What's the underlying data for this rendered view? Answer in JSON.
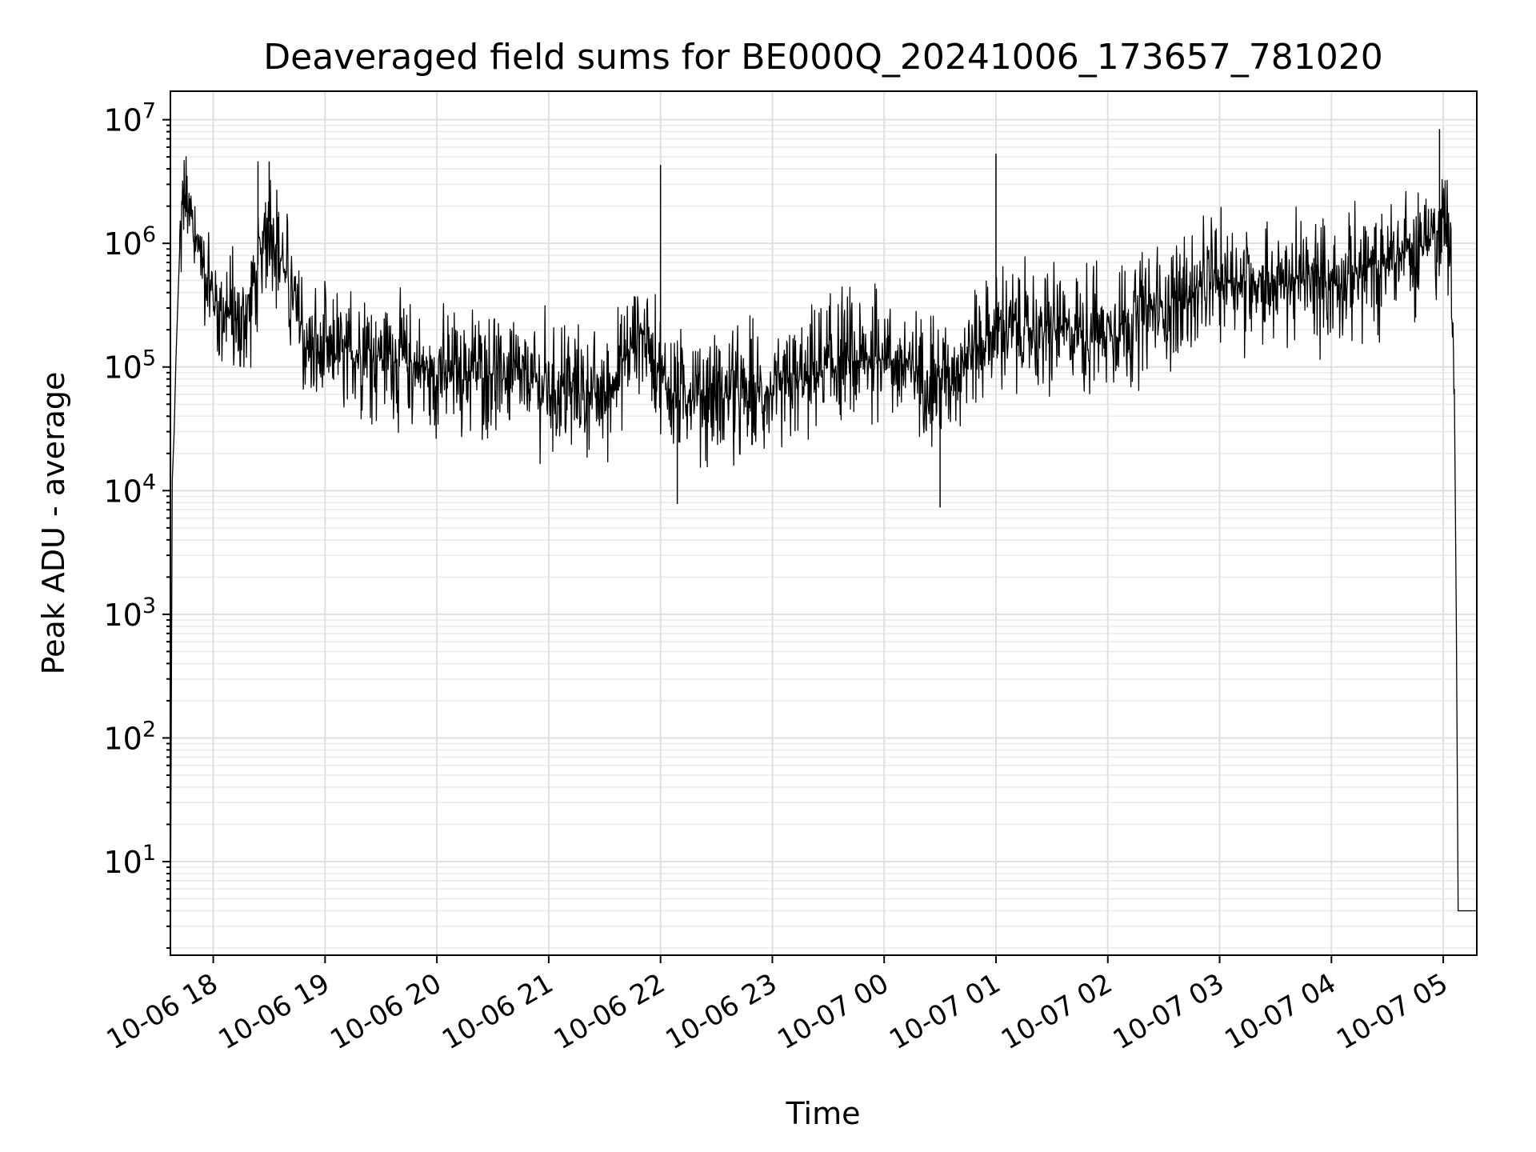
{
  "chart_data": {
    "type": "line",
    "title": "Deaveraged field sums for BE000Q_20241006_173657_781020",
    "xlabel": "Time",
    "ylabel": "Peak ADU - average",
    "yscale": "log",
    "ylim": [
      1.75,
      17000000
    ],
    "xlim": [
      "2024-10-06 17:37",
      "2024-10-07 05:18"
    ],
    "grid": true,
    "line_color": "#000000",
    "x_tick_labels": [
      "10-06 18",
      "10-06 19",
      "10-06 20",
      "10-06 21",
      "10-06 22",
      "10-06 23",
      "10-07 00",
      "10-07 01",
      "10-07 02",
      "10-07 03",
      "10-07 04",
      "10-07 05"
    ],
    "x_tick_times": [
      "2024-10-06 18:00",
      "2024-10-06 19:00",
      "2024-10-06 20:00",
      "2024-10-06 21:00",
      "2024-10-06 22:00",
      "2024-10-06 23:00",
      "2024-10-07 00:00",
      "2024-10-07 01:00",
      "2024-10-07 02:00",
      "2024-10-07 03:00",
      "2024-10-07 04:00",
      "2024-10-07 05:00"
    ],
    "y_ticks": [
      {
        "value": 10,
        "base": "10",
        "exp": "1"
      },
      {
        "value": 100,
        "base": "10",
        "exp": "2"
      },
      {
        "value": 1000,
        "base": "10",
        "exp": "3"
      },
      {
        "value": 10000,
        "base": "10",
        "exp": "4"
      },
      {
        "value": 100000,
        "base": "10",
        "exp": "5"
      },
      {
        "value": 1000000,
        "base": "10",
        "exp": "6"
      },
      {
        "value": 10000000,
        "base": "10",
        "exp": "7"
      }
    ],
    "series": [
      {
        "points": [
          [
            "2024-10-06 17:37",
            2
          ],
          [
            "2024-10-06 17:38",
            12000
          ],
          [
            "2024-10-06 17:39",
            30000
          ],
          [
            "2024-10-06 17:40",
            120000
          ],
          [
            "2024-10-06 17:42",
            900000
          ],
          [
            "2024-10-06 17:44",
            2200000
          ],
          [
            "2024-10-06 17:48",
            1500000
          ],
          [
            "2024-10-06 17:55",
            700000
          ],
          [
            "2024-10-06 18:00",
            350000
          ],
          [
            "2024-10-06 18:15",
            200000
          ],
          [
            "2024-10-06 18:30",
            1500000
          ],
          [
            "2024-10-06 18:40",
            500000
          ],
          [
            "2024-10-06 18:50",
            140000
          ],
          [
            "2024-10-06 19:00",
            120000
          ],
          [
            "2024-10-06 19:30",
            130000
          ],
          [
            "2024-10-06 20:00",
            90000
          ],
          [
            "2024-10-06 20:30",
            90000
          ],
          [
            "2024-10-06 21:00",
            70000
          ],
          [
            "2024-10-06 21:30",
            60000
          ],
          [
            "2024-10-06 21:50",
            200000
          ],
          [
            "2024-10-06 22:05",
            60000
          ],
          [
            "2024-10-06 22:30",
            60000
          ],
          [
            "2024-10-06 23:00",
            60000
          ],
          [
            "2024-10-06 23:30",
            100000
          ],
          [
            "2024-10-07 00:00",
            120000
          ],
          [
            "2024-10-07 00:30",
            80000
          ],
          [
            "2024-10-07 01:00",
            200000
          ],
          [
            "2024-10-07 01:30",
            200000
          ],
          [
            "2024-10-07 02:00",
            200000
          ],
          [
            "2024-10-07 02:30",
            300000
          ],
          [
            "2024-10-07 03:00",
            500000
          ],
          [
            "2024-10-07 03:30",
            500000
          ],
          [
            "2024-10-07 04:00",
            500000
          ],
          [
            "2024-10-07 04:30",
            700000
          ],
          [
            "2024-10-07 04:55",
            1200000
          ],
          [
            "2024-10-07 05:03",
            1500000
          ],
          [
            "2024-10-07 05:06",
            60000
          ],
          [
            "2024-10-07 05:07",
            900
          ],
          [
            "2024-10-07 05:08",
            4
          ],
          [
            "2024-10-07 05:18",
            4
          ]
        ],
        "spikes": [
          [
            "2024-10-06 18:24",
            4600000
          ],
          [
            "2024-10-06 18:30",
            4600000
          ],
          [
            "2024-10-06 22:00",
            4300000
          ],
          [
            "2024-10-07 01:00",
            5300000
          ],
          [
            "2024-10-07 04:58",
            8400000
          ],
          [
            "2024-10-06 22:09",
            7800
          ],
          [
            "2024-10-07 00:30",
            7300
          ]
        ]
      }
    ]
  }
}
